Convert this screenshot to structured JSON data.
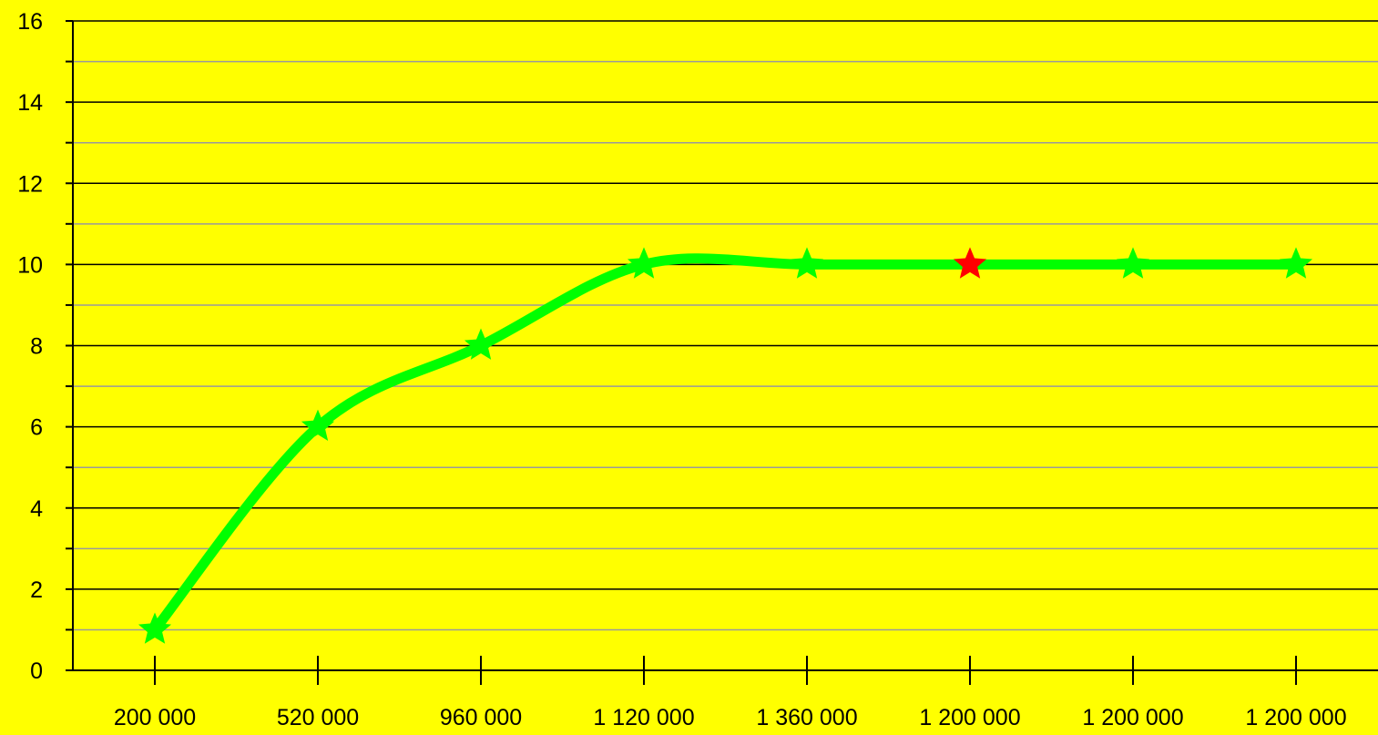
{
  "colors": {
    "background": "#ffff00",
    "line": "#00ff00",
    "marker": "#00ff00",
    "highlight_marker": "#ff0000"
  },
  "chart_data": {
    "type": "line",
    "title": "",
    "xlabel": "",
    "ylabel": "",
    "categories": [
      "200 000",
      "520 000",
      "960 000",
      "1 120 000",
      "1 360 000",
      "1 200 000",
      "1 200 000",
      "1 200 000"
    ],
    "series": [
      {
        "values": [
          1,
          6,
          8,
          10,
          10,
          10,
          10,
          10
        ]
      }
    ],
    "highlight_index": 5,
    "marker": "star",
    "smooth": true,
    "ylim": [
      0,
      16
    ],
    "y_major_ticks": [
      0,
      2,
      4,
      6,
      8,
      10,
      12,
      14,
      16
    ],
    "y_minor_step": 1,
    "grid": true,
    "legend": "none"
  }
}
